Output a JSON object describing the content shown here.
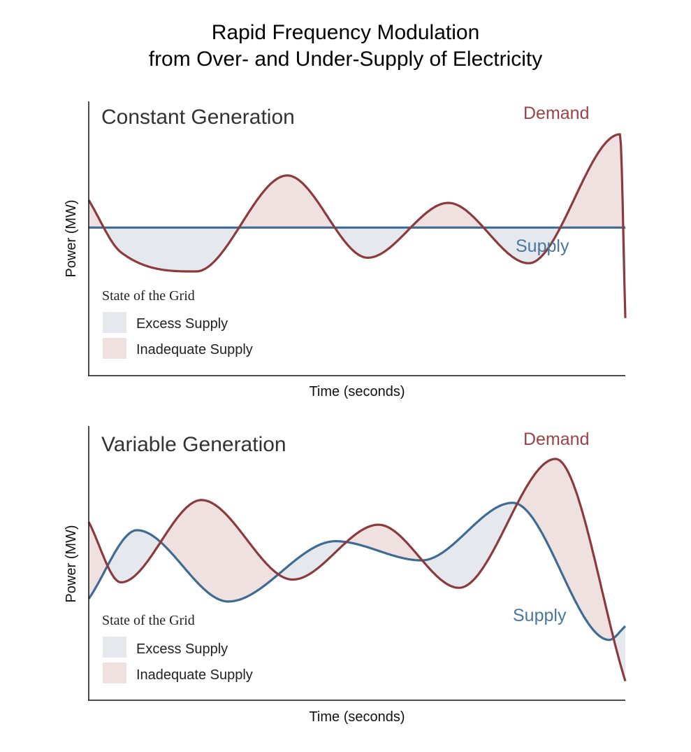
{
  "title": {
    "line1": "Rapid Frequency Modulation",
    "line2": "from Over- and Under-Supply of Electricity"
  },
  "colors": {
    "demand": "#8b3a3e",
    "supply": "#3f6b93",
    "excess_fill": "#e5e9ee",
    "inadequate_fill": "#f0e1e1",
    "axis": "#111111"
  },
  "chart_data": [
    {
      "type": "area",
      "title": "Constant Generation",
      "xlabel": "Time (seconds)",
      "ylabel": "Power (MW)",
      "legend": {
        "title": "State of the Grid",
        "placement": "bottom-left",
        "entries": [
          {
            "label": "Excess Supply",
            "color": "#e5e9ee"
          },
          {
            "label": "Inadequate Supply",
            "color": "#f0e1e1"
          }
        ]
      },
      "x_range": [
        0,
        100
      ],
      "y_range": [
        0,
        100
      ],
      "series": [
        {
          "name": "Demand",
          "color": "#8b3a3e",
          "x": [
            0,
            6,
            20,
            37,
            52,
            67,
            82,
            99,
            100
          ],
          "y": [
            64,
            45,
            38,
            73,
            43,
            63,
            41,
            88,
            21
          ]
        },
        {
          "name": "Supply",
          "color": "#3f6b93",
          "x": [
            0,
            100
          ],
          "y": [
            54,
            54
          ]
        }
      ],
      "shading": {
        "excess": "Supply above Demand",
        "inadequate": "Demand above Supply"
      }
    },
    {
      "type": "area",
      "title": "Variable Generation",
      "xlabel": "Time (seconds)",
      "ylabel": "Power (MW)",
      "legend": {
        "title": "State of the Grid",
        "placement": "bottom-left",
        "entries": [
          {
            "label": "Excess Supply",
            "color": "#e5e9ee"
          },
          {
            "label": "Inadequate Supply",
            "color": "#f0e1e1"
          }
        ]
      },
      "x_range": [
        0,
        100
      ],
      "y_range": [
        0,
        100
      ],
      "series": [
        {
          "name": "Demand",
          "color": "#8b3a3e",
          "x": [
            0,
            6,
            21,
            38,
            54,
            69,
            87,
            100
          ],
          "y": [
            65,
            43,
            73,
            44,
            64,
            41,
            88,
            7
          ]
        },
        {
          "name": "Supply",
          "color": "#3f6b93",
          "x": [
            0,
            9,
            26,
            46,
            62,
            79,
            97,
            100
          ],
          "y": [
            37,
            62,
            36,
            58,
            51,
            72,
            22,
            27
          ]
        }
      ],
      "shading": {
        "excess": "Supply above Demand",
        "inadequate": "Demand above Supply"
      }
    }
  ]
}
